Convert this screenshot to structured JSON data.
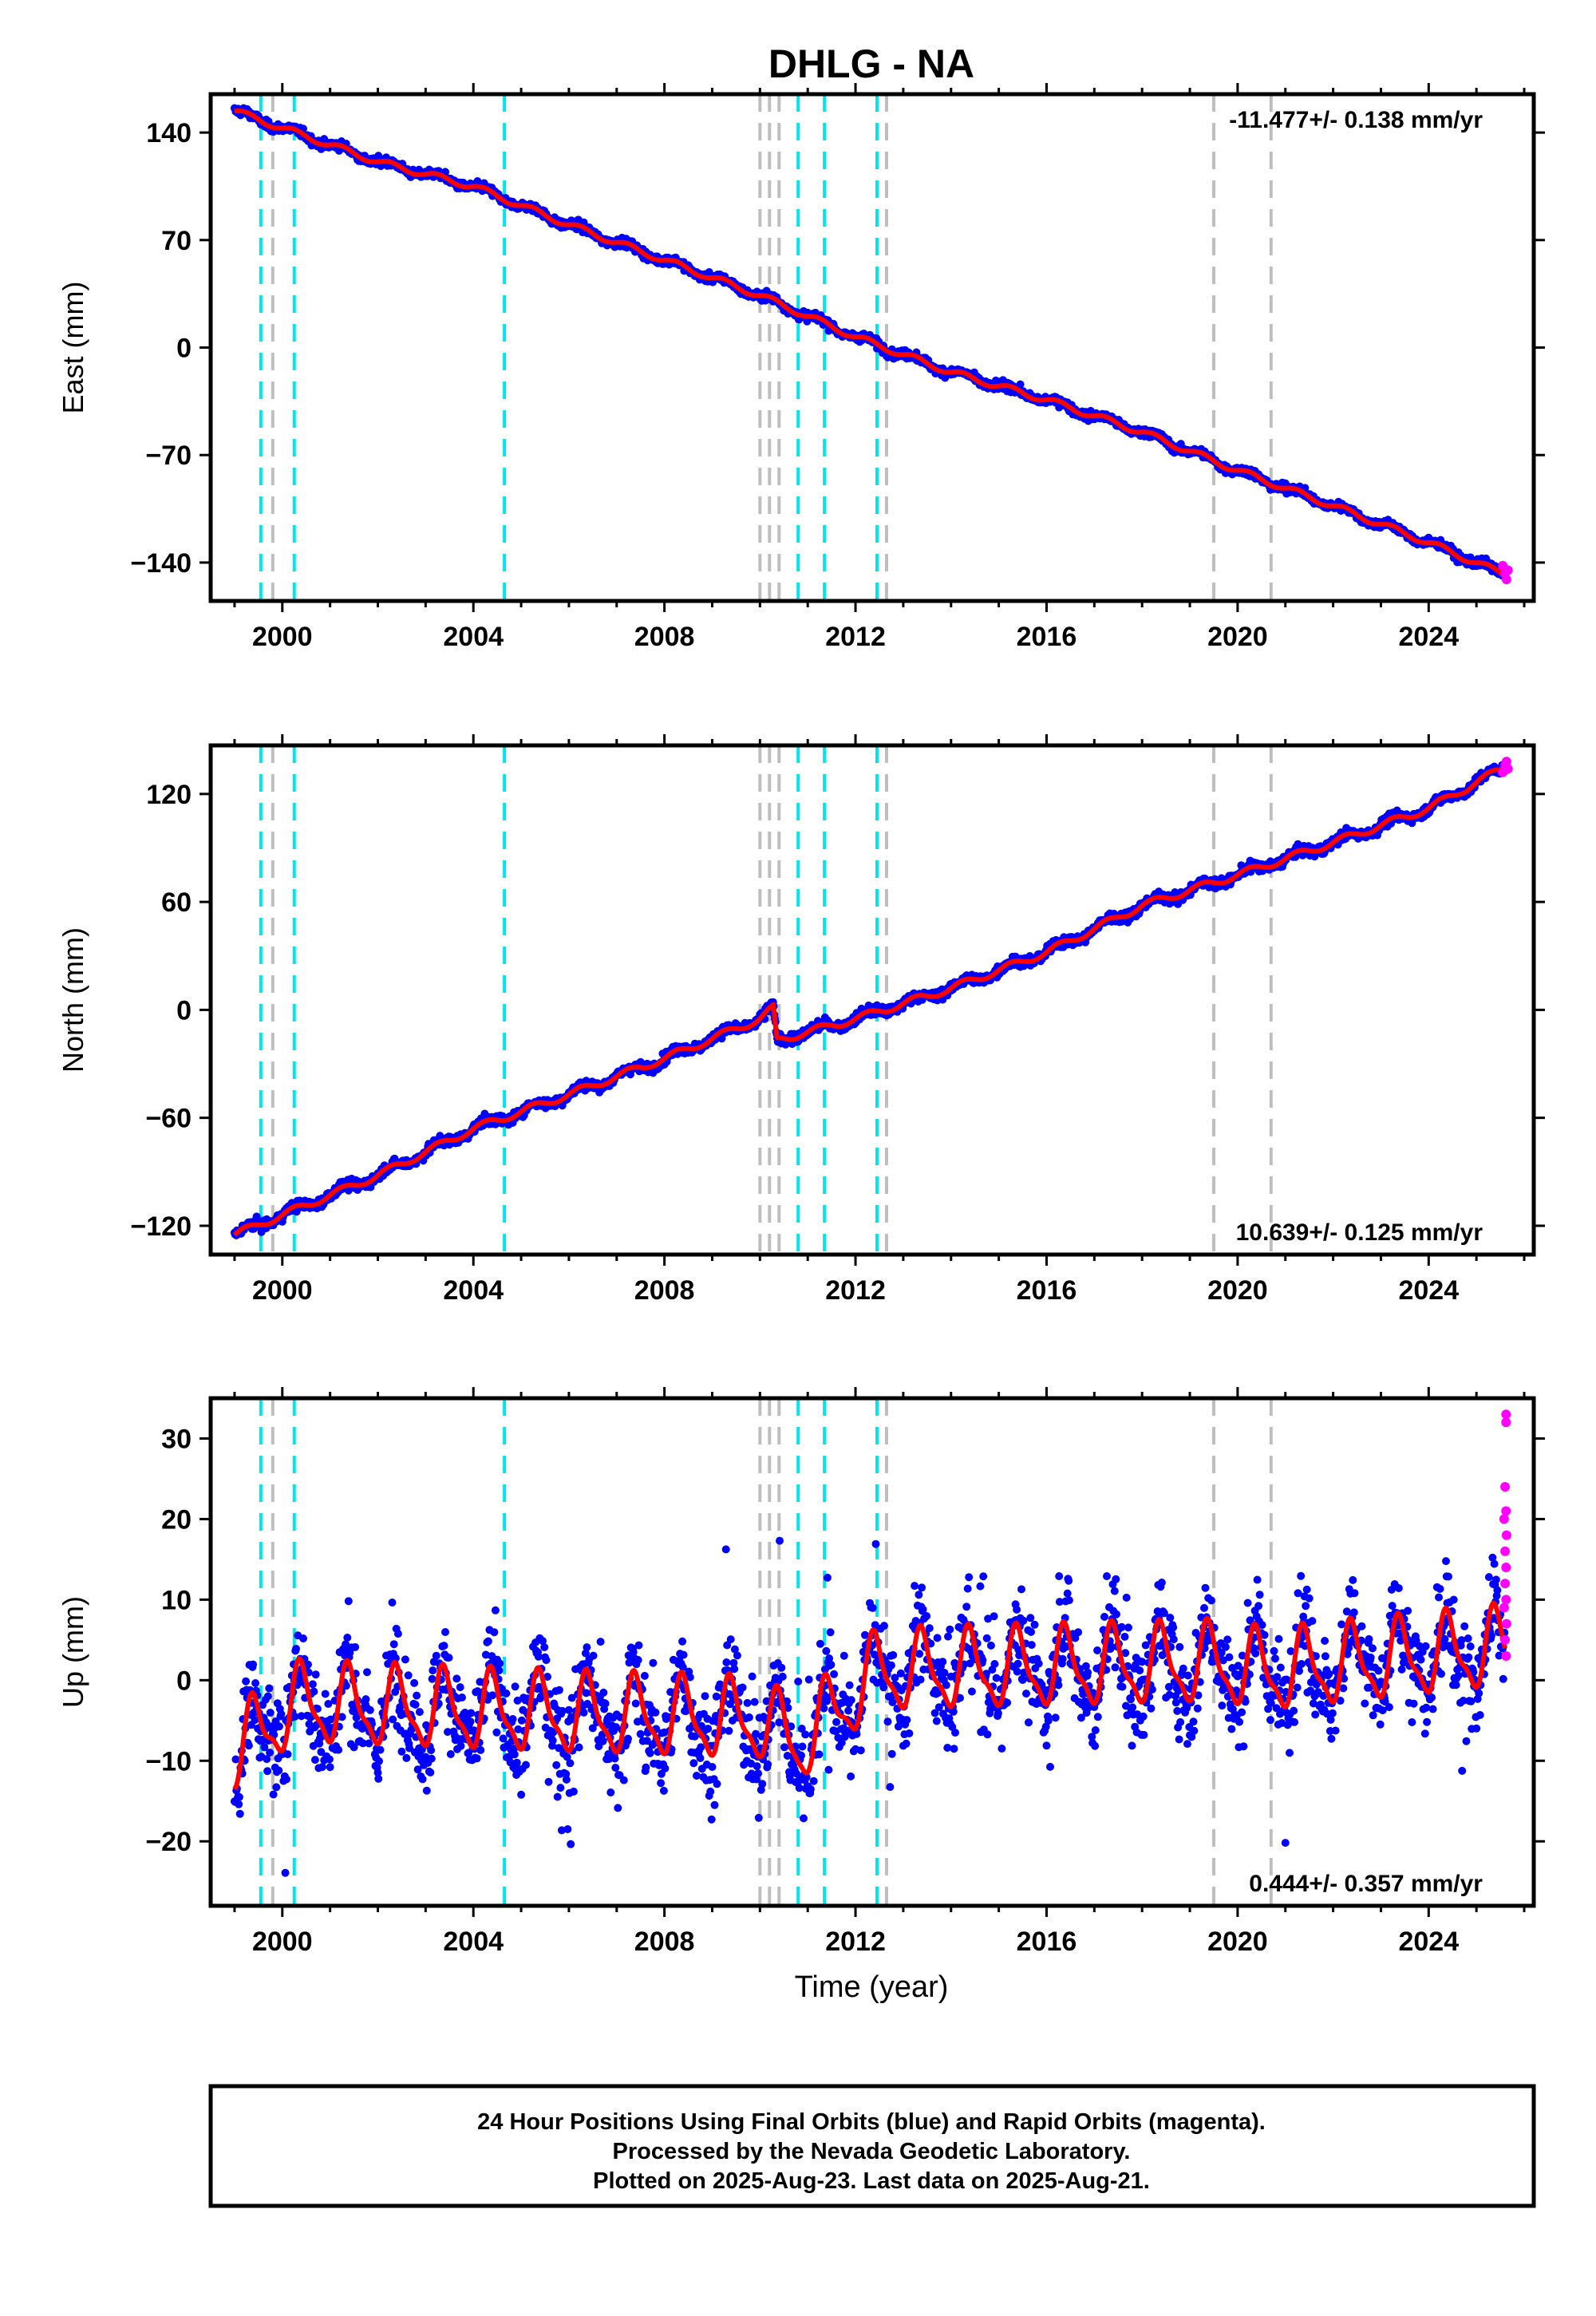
{
  "chart_data": {
    "type": "scatter",
    "title": "DHLG - NA",
    "xlabel": "Time (year)",
    "x_ticks": [
      2000,
      2004,
      2008,
      2012,
      2016,
      2020,
      2024
    ],
    "xlim": [
      1998.5,
      2026.2
    ],
    "colors": {
      "final_orbits": "#0000ff",
      "rapid_orbits": "#ff00ff",
      "model": "#ff0000",
      "equipment_change": "#00e5ee",
      "other_event": "#bebebe"
    },
    "event_lines": {
      "cyan": [
        1999.55,
        2000.25,
        2004.65,
        2010.8,
        2011.35,
        2012.45
      ],
      "gray": [
        1999.8,
        2010.0,
        2010.2,
        2010.4,
        2012.65,
        2019.5,
        2020.7
      ]
    },
    "panels": [
      {
        "ylabel": "East (mm)",
        "ylim": [
          -165,
          165
        ],
        "y_ticks": [
          140,
          70,
          0,
          -70,
          -140
        ],
        "rate_text": "-11.477+/- 0.138 mm/yr",
        "rate_position": "top-right",
        "series": [
          {
            "x": [
              1999.0,
              2000.0,
              2002.0,
              2004.0,
              2006.0,
              2008.0,
              2010.0,
              2012.0,
              2014.0,
              2016.0,
              2018.0,
              2020.0,
              2022.0,
              2024.0,
              2025.6
            ],
            "values": [
              154,
              143,
              121,
              105,
              80,
              57,
              34,
              7,
              -16,
              -34,
              -55,
              -80,
              -103,
              -127,
              -148
            ]
          }
        ],
        "rapid_points": [
          {
            "x": 2025.55,
            "y": -142
          },
          {
            "x": 2025.6,
            "y": -147
          },
          {
            "x": 2025.63,
            "y": -151
          },
          {
            "x": 2025.66,
            "y": -145
          }
        ]
      },
      {
        "ylabel": "North (mm)",
        "ylim": [
          -136,
          147
        ],
        "y_ticks": [
          120,
          60,
          0,
          -60,
          -120
        ],
        "rate_text": "10.639+/- 0.125 mm/yr",
        "rate_position": "bottom-right",
        "series": [
          {
            "x": [
              1999.0,
              2000.0,
              2002.0,
              2004.0,
              2006.0,
              2008.0,
              2010.0,
              2010.28,
              2010.35,
              2012.0,
              2014.0,
              2016.0,
              2018.0,
              2020.0,
              2022.0,
              2024.0,
              2025.6
            ],
            "values": [
              -125,
              -114,
              -92,
              -66,
              -47,
              -27,
              -5,
              1,
              -17,
              -5,
              12,
              32,
              58,
              75,
              93,
              112,
              135
            ]
          }
        ],
        "rapid_points": [
          {
            "x": 2025.55,
            "y": 132
          },
          {
            "x": 2025.6,
            "y": 136
          },
          {
            "x": 2025.63,
            "y": 138
          },
          {
            "x": 2025.66,
            "y": 134
          }
        ]
      },
      {
        "ylabel": "Up (mm)",
        "ylim": [
          -28,
          35
        ],
        "y_ticks": [
          30,
          20,
          10,
          0,
          -10,
          -20
        ],
        "rate_text": "0.444+/- 0.357 mm/yr",
        "rate_position": "bottom-right",
        "series": [
          {
            "x": [
              1999.0,
              2000.25,
              2004.65,
              2010.0,
              2010.8,
              2012.45,
              2019.5,
              2020.7,
              2025.6
            ],
            "values": [
              -9,
              -3,
              -4,
              -5,
              -8,
              1,
              2,
              1,
              4
            ]
          }
        ],
        "rapid_points": [
          {
            "x": 2025.62,
            "y": 33
          },
          {
            "x": 2025.62,
            "y": 32
          },
          {
            "x": 2025.6,
            "y": 24
          },
          {
            "x": 2025.62,
            "y": 21
          },
          {
            "x": 2025.58,
            "y": 20
          },
          {
            "x": 2025.63,
            "y": 18
          },
          {
            "x": 2025.6,
            "y": 16
          },
          {
            "x": 2025.62,
            "y": 14
          },
          {
            "x": 2025.6,
            "y": 12
          },
          {
            "x": 2025.62,
            "y": 10
          },
          {
            "x": 2025.58,
            "y": 9
          },
          {
            "x": 2025.63,
            "y": 7
          },
          {
            "x": 2025.6,
            "y": 5
          },
          {
            "x": 2025.62,
            "y": 3
          }
        ]
      }
    ],
    "footer_lines": [
      "24 Hour Positions Using Final Orbits (blue) and Rapid Orbits (magenta).",
      "Processed by the Nevada Geodetic Laboratory.",
      "Plotted on 2025-Aug-23. Last data on 2025-Aug-21."
    ]
  }
}
